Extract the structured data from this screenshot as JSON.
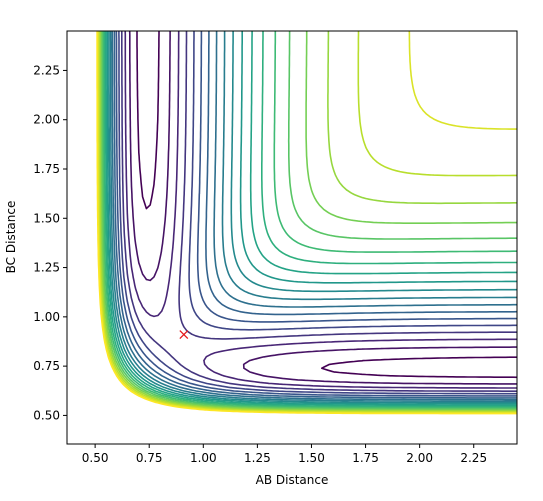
{
  "chart_data": {
    "type": "contour",
    "title": "",
    "xlabel": "AB Distance",
    "ylabel": "BC Distance",
    "xlim": [
      0.37,
      2.45
    ],
    "ylim": [
      0.355,
      2.45
    ],
    "xticks": [
      "0.50",
      "0.75",
      "1.00",
      "1.25",
      "1.50",
      "1.75",
      "2.00",
      "2.25"
    ],
    "yticks": [
      "0.50",
      "0.75",
      "1.00",
      "1.25",
      "1.50",
      "1.75",
      "2.00",
      "2.25"
    ],
    "colormap": "viridis",
    "grid": false,
    "legend": "none",
    "contour_levels": 20,
    "marker": {
      "type": "x",
      "x": 0.91,
      "y": 0.91,
      "color": "#e41a1c"
    }
  }
}
